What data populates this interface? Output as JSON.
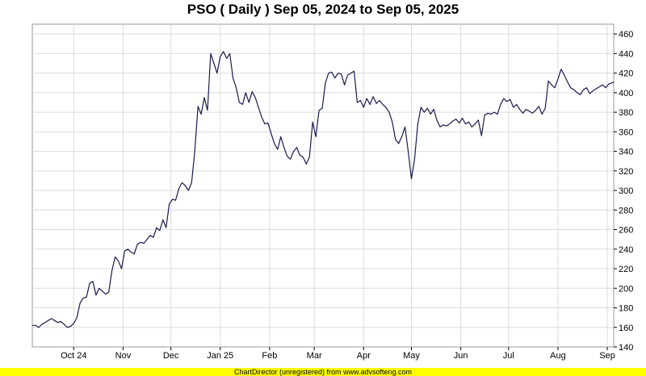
{
  "title": "PSO ( Daily ) Sep 05, 2024 to Sep 05, 2025",
  "footer": "ChartDirector (unregistered) from www.advsofteng.com",
  "colors": {
    "line": "#1a1a4e",
    "grid": "#dcdcdc",
    "plot_border": "#999999",
    "footer_bg": "#ffff00"
  },
  "chart_data": {
    "type": "line",
    "title": "PSO ( Daily ) Sep 05, 2024 to Sep 05, 2025",
    "xlabel": "",
    "ylabel": "",
    "ylim": [
      140,
      470
    ],
    "y_ticks": [
      140,
      160,
      180,
      200,
      220,
      240,
      260,
      280,
      300,
      320,
      340,
      360,
      380,
      400,
      420,
      440,
      460
    ],
    "x_range": [
      "2024-09-05",
      "2025-09-05"
    ],
    "x_ticks": [
      {
        "label": "Oct 24",
        "date": "2024-10-01"
      },
      {
        "label": "Nov",
        "date": "2024-11-01"
      },
      {
        "label": "Dec",
        "date": "2024-12-01"
      },
      {
        "label": "Jan 25",
        "date": "2025-01-01"
      },
      {
        "label": "Feb",
        "date": "2025-02-01"
      },
      {
        "label": "Mar",
        "date": "2025-03-01"
      },
      {
        "label": "Apr",
        "date": "2025-04-01"
      },
      {
        "label": "May",
        "date": "2025-05-01"
      },
      {
        "label": "Jun",
        "date": "2025-06-01"
      },
      {
        "label": "Jul",
        "date": "2025-07-01"
      },
      {
        "label": "Aug",
        "date": "2025-08-01"
      },
      {
        "label": "Sep",
        "date": "2025-09-01"
      }
    ],
    "grid": true,
    "y_axis_side": "right",
    "series": [
      {
        "points": [
          [
            "2024-09-05",
            162
          ],
          [
            "2024-09-07",
            162
          ],
          [
            "2024-09-09",
            160
          ],
          [
            "2024-09-11",
            163
          ],
          [
            "2024-09-13",
            165
          ],
          [
            "2024-09-15",
            167
          ],
          [
            "2024-09-17",
            169
          ],
          [
            "2024-09-19",
            167
          ],
          [
            "2024-09-21",
            165
          ],
          [
            "2024-09-23",
            166
          ],
          [
            "2024-09-25",
            163
          ],
          [
            "2024-09-27",
            160
          ],
          [
            "2024-09-29",
            161
          ],
          [
            "2024-10-01",
            164
          ],
          [
            "2024-10-03",
            170
          ],
          [
            "2024-10-05",
            185
          ],
          [
            "2024-10-07",
            190
          ],
          [
            "2024-10-09",
            191
          ],
          [
            "2024-10-11",
            205
          ],
          [
            "2024-10-13",
            207
          ],
          [
            "2024-10-15",
            193
          ],
          [
            "2024-10-17",
            200
          ],
          [
            "2024-10-19",
            197
          ],
          [
            "2024-10-21",
            194
          ],
          [
            "2024-10-23",
            196
          ],
          [
            "2024-10-25",
            218
          ],
          [
            "2024-10-27",
            232
          ],
          [
            "2024-10-29",
            228
          ],
          [
            "2024-10-31",
            220
          ],
          [
            "2024-11-02",
            238
          ],
          [
            "2024-11-04",
            240
          ],
          [
            "2024-11-06",
            237
          ],
          [
            "2024-11-08",
            235
          ],
          [
            "2024-11-10",
            245
          ],
          [
            "2024-11-12",
            247
          ],
          [
            "2024-11-14",
            246
          ],
          [
            "2024-11-16",
            250
          ],
          [
            "2024-11-18",
            254
          ],
          [
            "2024-11-20",
            252
          ],
          [
            "2024-11-22",
            262
          ],
          [
            "2024-11-24",
            259
          ],
          [
            "2024-11-26",
            270
          ],
          [
            "2024-11-28",
            262
          ],
          [
            "2024-11-30",
            286
          ],
          [
            "2024-12-02",
            291
          ],
          [
            "2024-12-04",
            290
          ],
          [
            "2024-12-06",
            302
          ],
          [
            "2024-12-08",
            308
          ],
          [
            "2024-12-10",
            305
          ],
          [
            "2024-12-12",
            300
          ],
          [
            "2024-12-14",
            308
          ],
          [
            "2024-12-16",
            340
          ],
          [
            "2024-12-18",
            386
          ],
          [
            "2024-12-20",
            378
          ],
          [
            "2024-12-22",
            395
          ],
          [
            "2024-12-24",
            382
          ],
          [
            "2024-12-26",
            440
          ],
          [
            "2024-12-28",
            430
          ],
          [
            "2024-12-30",
            420
          ],
          [
            "2025-01-01",
            437
          ],
          [
            "2025-01-03",
            442
          ],
          [
            "2025-01-05",
            435
          ],
          [
            "2025-01-07",
            440
          ],
          [
            "2025-01-09",
            415
          ],
          [
            "2025-01-11",
            405
          ],
          [
            "2025-01-13",
            390
          ],
          [
            "2025-01-15",
            388
          ],
          [
            "2025-01-17",
            400
          ],
          [
            "2025-01-19",
            390
          ],
          [
            "2025-01-21",
            401
          ],
          [
            "2025-01-23",
            395
          ],
          [
            "2025-01-25",
            385
          ],
          [
            "2025-01-27",
            375
          ],
          [
            "2025-01-29",
            368
          ],
          [
            "2025-01-31",
            369
          ],
          [
            "2025-02-02",
            358
          ],
          [
            "2025-02-04",
            348
          ],
          [
            "2025-02-06",
            342
          ],
          [
            "2025-02-08",
            355
          ],
          [
            "2025-02-10",
            344
          ],
          [
            "2025-02-12",
            335
          ],
          [
            "2025-02-14",
            332
          ],
          [
            "2025-02-16",
            340
          ],
          [
            "2025-02-18",
            344
          ],
          [
            "2025-02-20",
            336
          ],
          [
            "2025-02-22",
            334
          ],
          [
            "2025-02-24",
            327
          ],
          [
            "2025-02-26",
            334
          ],
          [
            "2025-02-28",
            370
          ],
          [
            "2025-03-02",
            355
          ],
          [
            "2025-03-04",
            382
          ],
          [
            "2025-03-06",
            384
          ],
          [
            "2025-03-08",
            410
          ],
          [
            "2025-03-10",
            420
          ],
          [
            "2025-03-12",
            421
          ],
          [
            "2025-03-14",
            415
          ],
          [
            "2025-03-16",
            420
          ],
          [
            "2025-03-18",
            419
          ],
          [
            "2025-03-20",
            408
          ],
          [
            "2025-03-22",
            418
          ],
          [
            "2025-03-24",
            420
          ],
          [
            "2025-03-26",
            422
          ],
          [
            "2025-03-28",
            390
          ],
          [
            "2025-03-30",
            392
          ],
          [
            "2025-04-01",
            385
          ],
          [
            "2025-04-03",
            394
          ],
          [
            "2025-04-05",
            388
          ],
          [
            "2025-04-07",
            396
          ],
          [
            "2025-04-09",
            389
          ],
          [
            "2025-04-11",
            392
          ],
          [
            "2025-04-13",
            388
          ],
          [
            "2025-04-15",
            385
          ],
          [
            "2025-04-17",
            380
          ],
          [
            "2025-04-19",
            370
          ],
          [
            "2025-04-21",
            352
          ],
          [
            "2025-04-23",
            348
          ],
          [
            "2025-04-25",
            355
          ],
          [
            "2025-04-27",
            365
          ],
          [
            "2025-04-29",
            340
          ],
          [
            "2025-05-01",
            312
          ],
          [
            "2025-05-03",
            332
          ],
          [
            "2025-05-05",
            368
          ],
          [
            "2025-05-07",
            385
          ],
          [
            "2025-05-09",
            380
          ],
          [
            "2025-05-11",
            384
          ],
          [
            "2025-05-13",
            378
          ],
          [
            "2025-05-15",
            383
          ],
          [
            "2025-05-17",
            372
          ],
          [
            "2025-05-19",
            365
          ],
          [
            "2025-05-21",
            367
          ],
          [
            "2025-05-23",
            366
          ],
          [
            "2025-05-25",
            368
          ],
          [
            "2025-05-27",
            371
          ],
          [
            "2025-05-29",
            373
          ],
          [
            "2025-05-31",
            369
          ],
          [
            "2025-06-02",
            374
          ],
          [
            "2025-06-04",
            368
          ],
          [
            "2025-06-06",
            370
          ],
          [
            "2025-06-08",
            365
          ],
          [
            "2025-06-10",
            368
          ],
          [
            "2025-06-12",
            372
          ],
          [
            "2025-06-14",
            356
          ],
          [
            "2025-06-16",
            377
          ],
          [
            "2025-06-18",
            379
          ],
          [
            "2025-06-20",
            378
          ],
          [
            "2025-06-22",
            380
          ],
          [
            "2025-06-24",
            378
          ],
          [
            "2025-06-26",
            388
          ],
          [
            "2025-06-28",
            394
          ],
          [
            "2025-06-30",
            391
          ],
          [
            "2025-07-02",
            393
          ],
          [
            "2025-07-04",
            385
          ],
          [
            "2025-07-06",
            388
          ],
          [
            "2025-07-08",
            383
          ],
          [
            "2025-07-10",
            379
          ],
          [
            "2025-07-12",
            383
          ],
          [
            "2025-07-14",
            381
          ],
          [
            "2025-07-16",
            379
          ],
          [
            "2025-07-18",
            382
          ],
          [
            "2025-07-20",
            386
          ],
          [
            "2025-07-22",
            378
          ],
          [
            "2025-07-24",
            384
          ],
          [
            "2025-07-26",
            412
          ],
          [
            "2025-07-28",
            408
          ],
          [
            "2025-07-30",
            405
          ],
          [
            "2025-08-01",
            414
          ],
          [
            "2025-08-03",
            424
          ],
          [
            "2025-08-05",
            418
          ],
          [
            "2025-08-07",
            411
          ],
          [
            "2025-08-09",
            405
          ],
          [
            "2025-08-11",
            403
          ],
          [
            "2025-08-13",
            400
          ],
          [
            "2025-08-15",
            398
          ],
          [
            "2025-08-17",
            403
          ],
          [
            "2025-08-19",
            405
          ],
          [
            "2025-08-21",
            399
          ],
          [
            "2025-08-23",
            402
          ],
          [
            "2025-08-25",
            404
          ],
          [
            "2025-08-27",
            406
          ],
          [
            "2025-08-29",
            408
          ],
          [
            "2025-08-31",
            405
          ],
          [
            "2025-09-02",
            409
          ],
          [
            "2025-09-04",
            410
          ],
          [
            "2025-09-05",
            411
          ]
        ]
      }
    ]
  }
}
